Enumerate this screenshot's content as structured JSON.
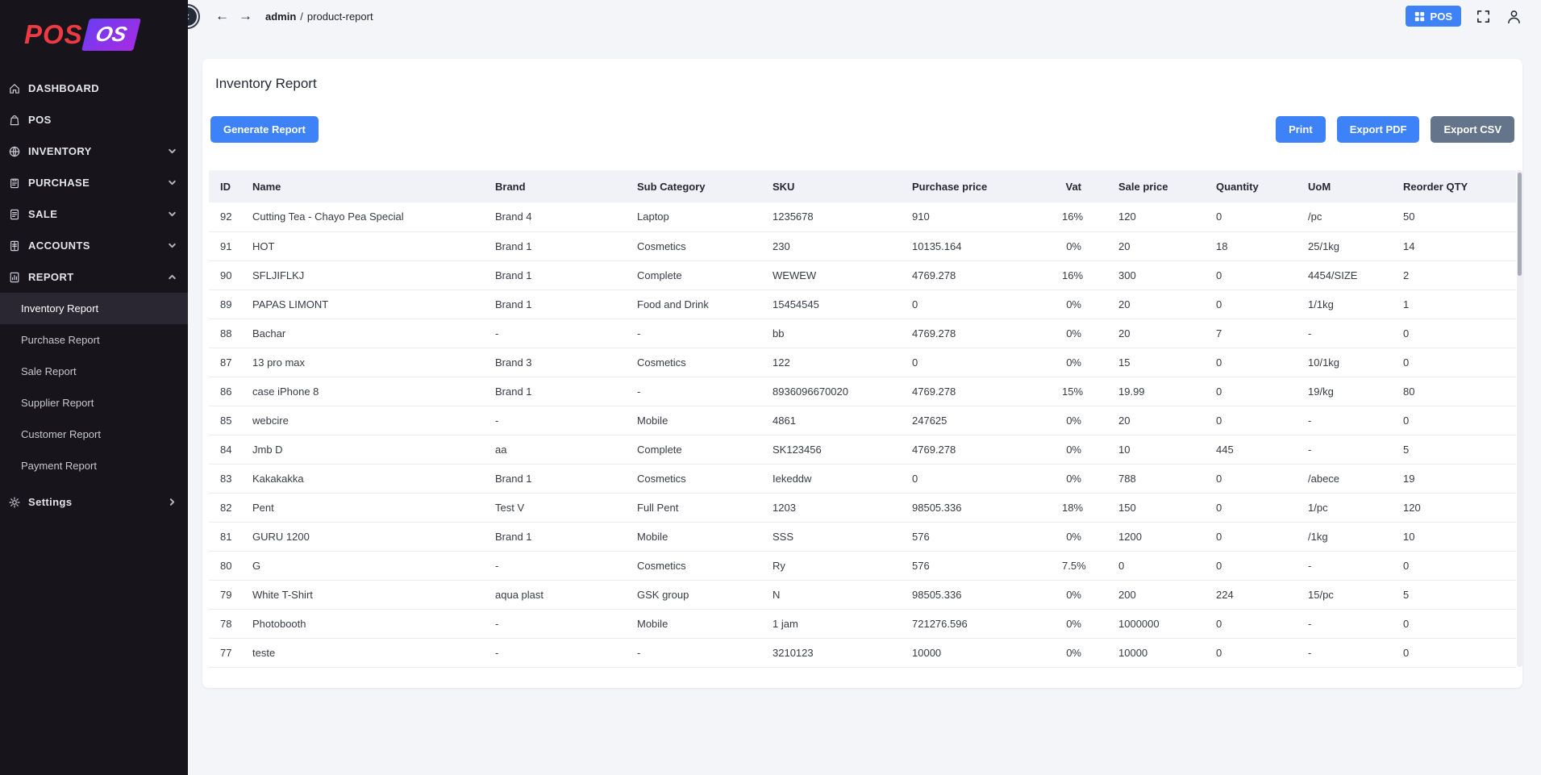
{
  "colors": {
    "accent_blue": "#3d83f7",
    "slate": "#64748b",
    "logo_red": "#ee3a43",
    "sidebar_bg": "#17141c"
  },
  "brand": {
    "pos": "POS",
    "os": "OS"
  },
  "topbar": {
    "breadcrumb": {
      "section": "admin",
      "separator": "/",
      "page": "product-report"
    },
    "pos_button_label": "POS"
  },
  "sidebar": {
    "items": [
      {
        "label": "DASHBOARD",
        "icon": "dashboard-icon",
        "chevron": ""
      },
      {
        "label": "POS",
        "icon": "pos-icon",
        "chevron": ""
      },
      {
        "label": "INVENTORY",
        "icon": "inventory-icon",
        "chevron": "down"
      },
      {
        "label": "PURCHASE",
        "icon": "purchase-icon",
        "chevron": "down"
      },
      {
        "label": "SALE",
        "icon": "sale-icon",
        "chevron": "down"
      },
      {
        "label": "ACCOUNTS",
        "icon": "accounts-icon",
        "chevron": "down"
      },
      {
        "label": "REPORT",
        "icon": "report-icon",
        "chevron": "up",
        "expanded": true
      }
    ],
    "report_children": [
      {
        "label": "Inventory Report",
        "active": true
      },
      {
        "label": "Purchase Report",
        "active": false
      },
      {
        "label": "Sale Report",
        "active": false
      },
      {
        "label": "Supplier Report",
        "active": false
      },
      {
        "label": "Customer Report",
        "active": false
      },
      {
        "label": "Payment Report",
        "active": false
      }
    ],
    "settings": {
      "label": "Settings",
      "icon": "gear-icon",
      "chevron": "right"
    }
  },
  "page": {
    "title": "Inventory Report",
    "buttons": {
      "generate": "Generate Report",
      "print": "Print",
      "export_pdf": "Export PDF",
      "export_csv": "Export CSV"
    }
  },
  "table": {
    "columns": [
      "ID",
      "Name",
      "Brand",
      "Sub Category",
      "SKU",
      "Purchase price",
      "Vat",
      "Sale price",
      "Quantity",
      "UoM",
      "Reorder QTY"
    ],
    "rows": [
      [
        "92",
        "Cutting Tea - Chayo Pea Special",
        "Brand 4",
        "Laptop",
        "1235678",
        "910",
        "16%",
        "120",
        "0",
        "/pc",
        "50"
      ],
      [
        "91",
        "HOT",
        "Brand 1",
        "Cosmetics",
        "230",
        "10135.164",
        "0%",
        "20",
        "18",
        "25/1kg",
        "14"
      ],
      [
        "90",
        "SFLJIFLKJ",
        "Brand 1",
        "Complete",
        "WEWEW",
        "4769.278",
        "16%",
        "300",
        "0",
        "4454/SIZE",
        "2"
      ],
      [
        "89",
        "PAPAS LIMONT",
        "Brand 1",
        "Food and Drink",
        "15454545",
        "0",
        "0%",
        "20",
        "0",
        "1/1kg",
        "1"
      ],
      [
        "88",
        "Bachar",
        "-",
        "-",
        "bb",
        "4769.278",
        "0%",
        "20",
        "7",
        "-",
        "0"
      ],
      [
        "87",
        "13 pro max",
        "Brand 3",
        "Cosmetics",
        "122",
        "0",
        "0%",
        "15",
        "0",
        "10/1kg",
        "0"
      ],
      [
        "86",
        "case iPhone 8",
        "Brand 1",
        "-",
        "8936096670020",
        "4769.278",
        "15%",
        "19.99",
        "0",
        "19/kg",
        "80"
      ],
      [
        "85",
        "webcire",
        "-",
        "Mobile",
        "4861",
        "247625",
        "0%",
        "20",
        "0",
        "-",
        "0"
      ],
      [
        "84",
        "Jmb D",
        "aa",
        "Complete",
        "SK123456",
        "4769.278",
        "0%",
        "10",
        "445",
        "-",
        "5"
      ],
      [
        "83",
        "Kakakakka",
        "Brand 1",
        "Cosmetics",
        "Iekeddw",
        "0",
        "0%",
        "788",
        "0",
        "/abece",
        "19"
      ],
      [
        "82",
        "Pent",
        "Test V",
        "Full Pent",
        "1203",
        "98505.336",
        "18%",
        "150",
        "0",
        "1/pc",
        "120"
      ],
      [
        "81",
        "GURU 1200",
        "Brand 1",
        "Mobile",
        "SSS",
        "576",
        "0%",
        "1200",
        "0",
        "/1kg",
        "10"
      ],
      [
        "80",
        "G",
        "-",
        "Cosmetics",
        "Ry",
        "576",
        "7.5%",
        "0",
        "0",
        "-",
        "0"
      ],
      [
        "79",
        "White T-Shirt",
        "aqua plast",
        "GSK group",
        "N",
        "98505.336",
        "0%",
        "200",
        "224",
        "15/pc",
        "5"
      ],
      [
        "78",
        "Photobooth",
        "-",
        "Mobile",
        "1 jam",
        "721276.596",
        "0%",
        "1000000",
        "0",
        "-",
        "0"
      ],
      [
        "77",
        "teste",
        "-",
        "-",
        "3210123",
        "10000",
        "0%",
        "10000",
        "0",
        "-",
        "0"
      ]
    ]
  }
}
